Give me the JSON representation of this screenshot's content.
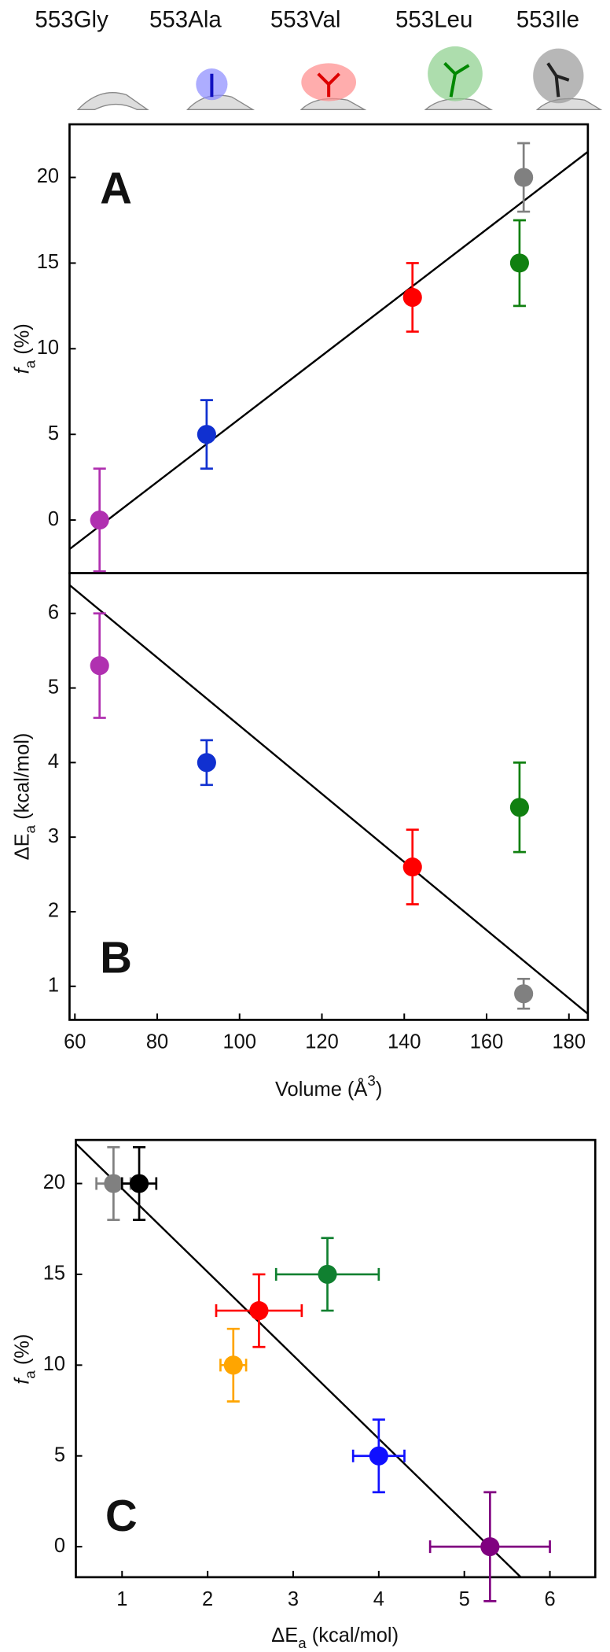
{
  "residues": [
    "553Gly",
    "553Ala",
    "553Val",
    "553Leu",
    "553Ile"
  ],
  "chart_data": [
    {
      "type": "scatter",
      "panel": "A",
      "ylabel": [
        {
          "text": "f",
          "style": "italic"
        },
        {
          "text": "a",
          "style": "sub"
        },
        {
          "text": " (%)"
        }
      ],
      "x": [
        66,
        92,
        142,
        168,
        169
      ],
      "values": [
        0,
        5,
        13,
        15,
        20
      ],
      "errors": [
        3,
        2,
        2,
        2.5,
        2
      ],
      "colors": [
        "#b030b0",
        "#1030d0",
        "#ff0000",
        "#108010",
        "#808080"
      ],
      "fit": {
        "x": [
          58.7,
          184.6
        ],
        "y": [
          -1.7,
          21.5
        ]
      },
      "xlim": [
        58.7,
        184.6
      ],
      "ylim": [
        -3.1,
        23.1
      ],
      "yticks": [
        0,
        5,
        10,
        15,
        20
      ]
    },
    {
      "type": "scatter",
      "panel": "B",
      "xlabel": [
        {
          "text": "Volume (Å"
        },
        {
          "text": "3",
          "style": "sup"
        },
        {
          "text": ")"
        }
      ],
      "ylabel": [
        {
          "text": "ΔE"
        },
        {
          "text": "a",
          "style": "sub"
        },
        {
          "text": " (kcal/mol)"
        }
      ],
      "x": [
        66,
        92,
        142,
        168,
        169
      ],
      "values": [
        5.3,
        4.0,
        2.6,
        3.4,
        0.9
      ],
      "errors": [
        0.7,
        0.3,
        0.5,
        0.6,
        0.2
      ],
      "colors": [
        "#b030b0",
        "#1030d0",
        "#ff0000",
        "#108010",
        "#808080"
      ],
      "fit": {
        "x": [
          58.7,
          184.6
        ],
        "y": [
          6.38,
          0.63
        ]
      },
      "xlim": [
        58.7,
        184.6
      ],
      "ylim": [
        0.55,
        6.54
      ],
      "xticks": [
        60,
        80,
        100,
        120,
        140,
        160,
        180
      ],
      "yticks": [
        1,
        2,
        3,
        4,
        5,
        6
      ]
    },
    {
      "type": "scatter",
      "panel": "C",
      "xlabel": [
        {
          "text": "ΔE"
        },
        {
          "text": "a",
          "style": "sub"
        },
        {
          "text": " (kcal/mol)"
        }
      ],
      "ylabel": [
        {
          "text": "f",
          "style": "italic"
        },
        {
          "text": "a",
          "style": "sub"
        },
        {
          "text": " (%)"
        }
      ],
      "x": [
        0.9,
        1.2,
        2.6,
        2.3,
        3.4,
        4.0,
        5.3
      ],
      "values": [
        20,
        20,
        13,
        10,
        15,
        5,
        0
      ],
      "xerrors": [
        0.2,
        0.2,
        0.5,
        0.15,
        0.6,
        0.3,
        0.7
      ],
      "errors": [
        2,
        2,
        2,
        2,
        2,
        2,
        3
      ],
      "colors": [
        "#808080",
        "#000000",
        "#ff0000",
        "#ffa500",
        "#108030",
        "#1010ff",
        "#800080"
      ],
      "fit": {
        "x": [
          0.46,
          5.66
        ],
        "y": [
          22.2,
          -1.68
        ]
      },
      "xlim": [
        0.46,
        6.53
      ],
      "ylim": [
        -1.68,
        22.4
      ],
      "xticks": [
        1,
        2,
        3,
        4,
        5,
        6
      ],
      "yticks": [
        0,
        5,
        10,
        15,
        20
      ]
    }
  ]
}
